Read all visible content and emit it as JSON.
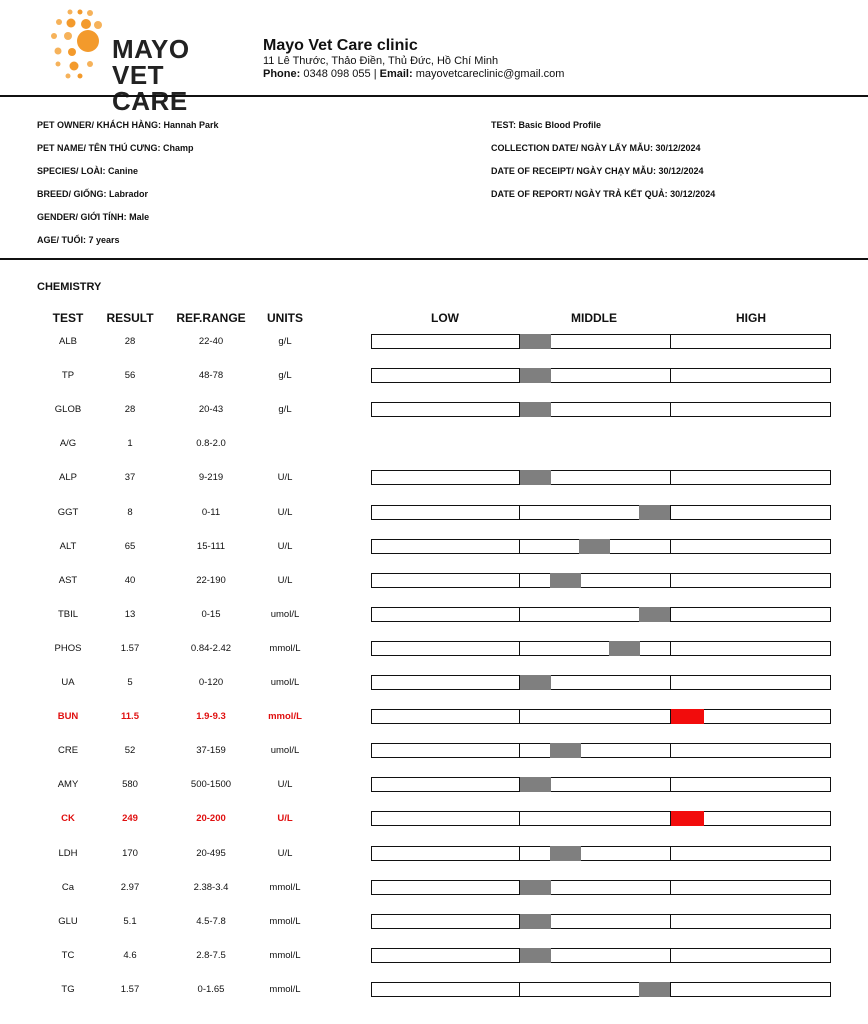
{
  "clinic": {
    "logo_line1": "MAYO",
    "logo_line2": "VET CARE",
    "name": "Mayo Vet Care clinic",
    "address": "11 Lê Thước, Thảo Điền, Thủ Đức, Hồ Chí Minh",
    "phone_label": "Phone:",
    "phone": "0348 098 055",
    "email_label": "Email:",
    "email": "mayovetcareclinic@gmail.com",
    "brand_color": "#f39a2c"
  },
  "patient": {
    "owner": "PET OWNER/ KHÁCH HÀNG: Hannah Park",
    "pet_name": "PET NAME/ TÊN THÚ CƯNG: Champ",
    "species": "SPECIES/ LOÀI: Canine",
    "breed": "BREED/ GIỐNG: Labrador",
    "gender": "GENDER/ GIỚI TÍNH: Male",
    "age": "AGE/ TUỔI: 7 years"
  },
  "test_info": {
    "test": "TEST: Basic Blood Profile",
    "collection_date": "COLLECTION DATE/ NGÀY LẤY MẪU: 30/12/2024",
    "receipt_date": "DATE OF RECEIPT/ NGÀY CHẠY MẪU: 30/12/2024",
    "report_date": "DATE OF REPORT/ NGÀY TRẢ KẾT QUẢ: 30/12/2024"
  },
  "section": "CHEMISTRY",
  "columns": {
    "test": "TEST",
    "result": "RESULT",
    "range": "REF.RANGE",
    "units": "UNITS",
    "low": "LOW",
    "middle": "MIDDLE",
    "high": "HIGH"
  },
  "colors": {
    "normal_marker": "#7f7f7f",
    "high_marker": "#f20c0c",
    "flag_text": "#e01010"
  },
  "rows": [
    {
      "test": "ALB",
      "result": "28",
      "range": "22-40",
      "units": "g/L",
      "level": 0,
      "flag": false,
      "bar": true
    },
    {
      "test": "TP",
      "result": "56",
      "range": "48-78",
      "units": "g/L",
      "level": 0,
      "flag": false,
      "bar": true
    },
    {
      "test": "GLOB",
      "result": "28",
      "range": "20-43",
      "units": "g/L",
      "level": 0,
      "flag": false,
      "bar": true
    },
    {
      "test": "A/G",
      "result": "1",
      "range": "0.8-2.0",
      "units": "",
      "level": 0,
      "flag": false,
      "bar": false
    },
    {
      "test": "ALP",
      "result": "37",
      "range": "9-219",
      "units": "U/L",
      "level": 0,
      "flag": false,
      "bar": true
    },
    {
      "test": "GGT",
      "result": "8",
      "range": "0-11",
      "units": "U/L",
      "level": 4,
      "flag": false,
      "bar": true
    },
    {
      "test": "ALT",
      "result": "65",
      "range": "15-111",
      "units": "U/L",
      "level": 2,
      "flag": false,
      "bar": true
    },
    {
      "test": "AST",
      "result": "40",
      "range": "22-190",
      "units": "U/L",
      "level": 1,
      "flag": false,
      "bar": true
    },
    {
      "test": "TBIL",
      "result": "13",
      "range": "0-15",
      "units": "umol/L",
      "level": 4,
      "flag": false,
      "bar": true
    },
    {
      "test": "PHOS",
      "result": "1.57",
      "range": "0.84-2.42",
      "units": "mmol/L",
      "level": 3,
      "flag": false,
      "bar": true
    },
    {
      "test": "UA",
      "result": "5",
      "range": "0-120",
      "units": "umol/L",
      "level": 0,
      "flag": false,
      "bar": true
    },
    {
      "test": "BUN",
      "result": "11.5",
      "range": "1.9-9.3",
      "units": "mmol/L",
      "level": 5,
      "flag": true,
      "bar": true
    },
    {
      "test": "CRE",
      "result": "52",
      "range": "37-159",
      "units": "umol/L",
      "level": 1,
      "flag": false,
      "bar": true
    },
    {
      "test": "AMY",
      "result": "580",
      "range": "500-1500",
      "units": "U/L",
      "level": 0,
      "flag": false,
      "bar": true
    },
    {
      "test": "CK",
      "result": "249",
      "range": "20-200",
      "units": "U/L",
      "level": 5,
      "flag": true,
      "bar": true
    },
    {
      "test": "LDH",
      "result": "170",
      "range": "20-495",
      "units": "U/L",
      "level": 1,
      "flag": false,
      "bar": true
    },
    {
      "test": "Ca",
      "result": "2.97",
      "range": "2.38-3.4",
      "units": "mmol/L",
      "level": 0,
      "flag": false,
      "bar": true
    },
    {
      "test": "GLU",
      "result": "5.1",
      "range": "4.5-7.8",
      "units": "mmol/L",
      "level": 0,
      "flag": false,
      "bar": true
    },
    {
      "test": "TC",
      "result": "4.6",
      "range": "2.8-7.5",
      "units": "mmol/L",
      "level": 0,
      "flag": false,
      "bar": true
    },
    {
      "test": "TG",
      "result": "1.57",
      "range": "0-1.65",
      "units": "mmol/L",
      "level": 4,
      "flag": false,
      "bar": true
    }
  ]
}
